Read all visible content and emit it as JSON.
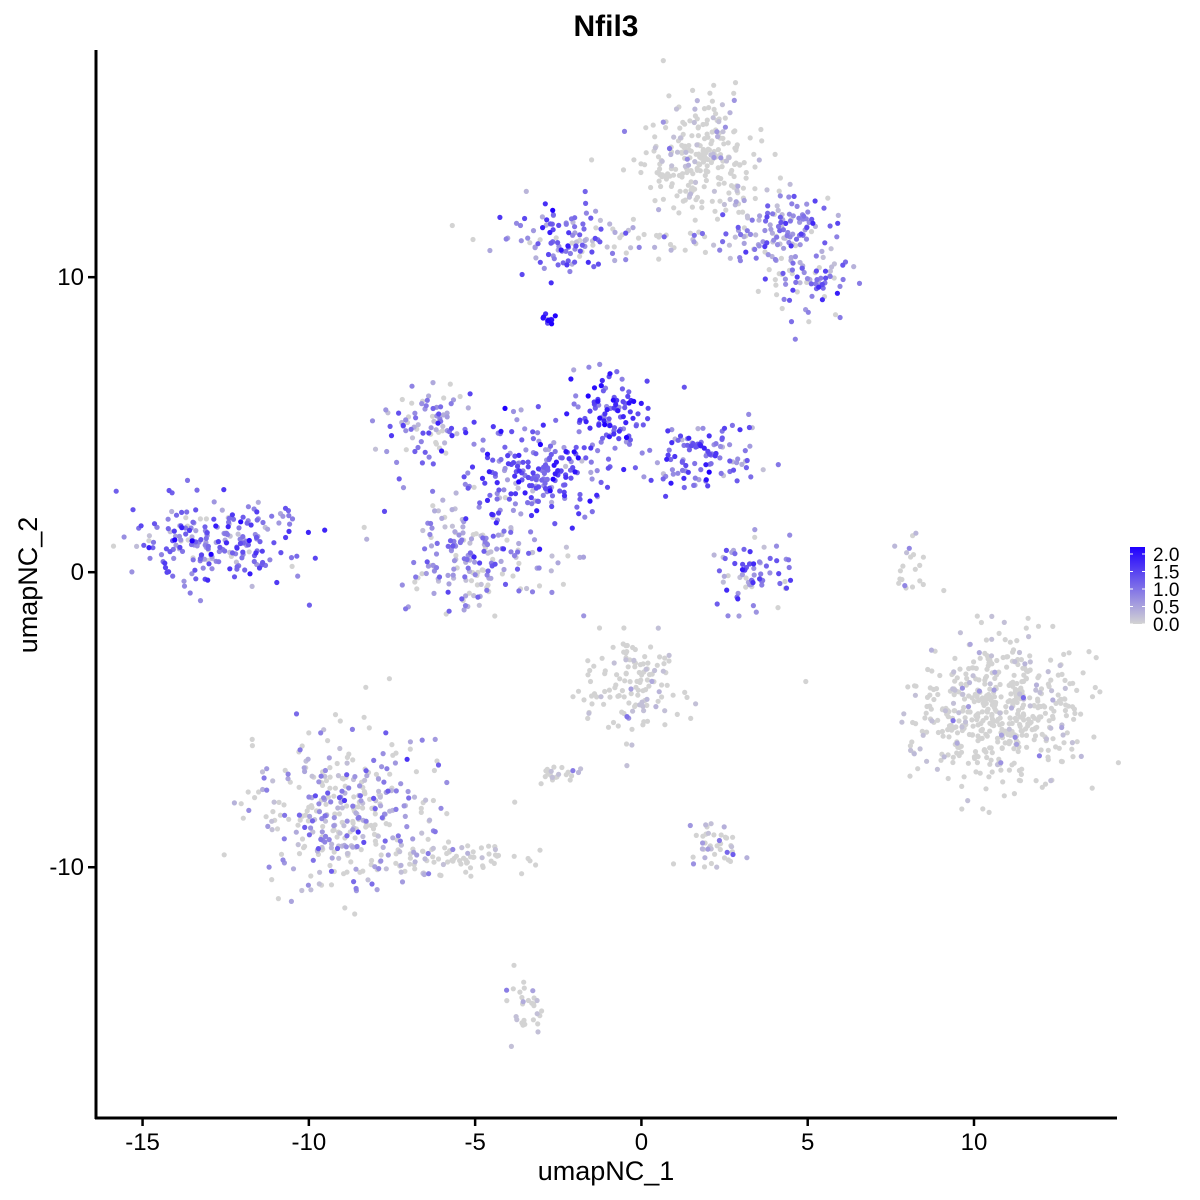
{
  "chart_data": {
    "type": "scatter",
    "title": "Nfil3",
    "xlabel": "umapNC_1",
    "ylabel": "umapNC_2",
    "xlim": [
      -16.4,
      14.3
    ],
    "ylim": [
      -18.5,
      17.7
    ],
    "xticks": [
      -15,
      -10,
      -5,
      0,
      5,
      10
    ],
    "xtick_labels": [
      "-15",
      "-10",
      "-5",
      "0",
      "5",
      "10"
    ],
    "yticks": [
      -10,
      0,
      10
    ],
    "ytick_labels": [
      "-10",
      "0",
      "10"
    ],
    "color_scale": {
      "low": "#d3d3d3",
      "high": "#1f00ff",
      "min": 0.0,
      "max": 2.2,
      "ticks": [
        0.0,
        0.5,
        1.0,
        1.5,
        2.0
      ],
      "tick_labels": [
        "0.0",
        "0.5",
        "1.0",
        "1.5",
        "2.0"
      ]
    },
    "legend_position": "right",
    "grid": false,
    "clusters": [
      {
        "id": "top-right-arm",
        "cx": 1.8,
        "cy": 14.0,
        "sx": 0.9,
        "sy": 1.0,
        "n": 260,
        "mean_expr": 0.15
      },
      {
        "id": "top-right-lobe",
        "cx": 4.2,
        "cy": 11.6,
        "sx": 0.9,
        "sy": 0.6,
        "n": 120,
        "mean_expr": 0.9
      },
      {
        "id": "top-right-lower",
        "cx": 5.0,
        "cy": 9.7,
        "sx": 0.7,
        "sy": 0.6,
        "n": 70,
        "mean_expr": 0.8
      },
      {
        "id": "top-bridge",
        "cx": -0.3,
        "cy": 11.2,
        "sx": 2.2,
        "sy": 0.3,
        "n": 70,
        "mean_expr": 0.4
      },
      {
        "id": "top-left-lobe",
        "cx": -2.4,
        "cy": 11.4,
        "sx": 0.7,
        "sy": 0.6,
        "n": 80,
        "mean_expr": 1.1
      },
      {
        "id": "small-blue-speck",
        "cx": -2.8,
        "cy": 8.6,
        "sx": 0.1,
        "sy": 0.1,
        "n": 12,
        "mean_expr": 2.0
      },
      {
        "id": "central-hub",
        "cx": -3.2,
        "cy": 3.3,
        "sx": 1.2,
        "sy": 0.9,
        "n": 220,
        "mean_expr": 1.2
      },
      {
        "id": "central-upper-left-arm",
        "cx": -6.5,
        "cy": 5.2,
        "sx": 0.7,
        "sy": 0.6,
        "n": 80,
        "mean_expr": 0.8
      },
      {
        "id": "central-upper-right-arm",
        "cx": -1.0,
        "cy": 5.5,
        "sx": 0.5,
        "sy": 0.7,
        "n": 90,
        "mean_expr": 1.4
      },
      {
        "id": "central-right-arm",
        "cx": 1.8,
        "cy": 4.0,
        "sx": 0.9,
        "sy": 0.6,
        "n": 110,
        "mean_expr": 1.1
      },
      {
        "id": "central-lower-lobe",
        "cx": -5.0,
        "cy": 0.6,
        "sx": 1.2,
        "sy": 1.0,
        "n": 200,
        "mean_expr": 0.7
      },
      {
        "id": "left-island",
        "cx": -12.8,
        "cy": 1.0,
        "sx": 1.1,
        "sy": 0.7,
        "n": 230,
        "mean_expr": 1.0
      },
      {
        "id": "mid-small-cluster",
        "cx": 3.3,
        "cy": -0.2,
        "sx": 0.6,
        "sy": 0.6,
        "n": 70,
        "mean_expr": 0.9
      },
      {
        "id": "right-thin-arc",
        "cx": 8.1,
        "cy": 0.1,
        "sx": 0.2,
        "sy": 0.7,
        "n": 20,
        "mean_expr": 0.2
      },
      {
        "id": "right-large-blob",
        "cx": 10.7,
        "cy": -4.7,
        "sx": 1.2,
        "sy": 1.3,
        "n": 520,
        "mean_expr": 0.08
      },
      {
        "id": "lower-center-cluster",
        "cx": -0.2,
        "cy": -3.9,
        "sx": 0.7,
        "sy": 0.8,
        "n": 130,
        "mean_expr": 0.15
      },
      {
        "id": "lower-left-cluster",
        "cx": -8.8,
        "cy": -8.2,
        "sx": 1.4,
        "sy": 1.2,
        "n": 380,
        "mean_expr": 0.55
      },
      {
        "id": "lower-left-tail",
        "cx": -5.6,
        "cy": -9.8,
        "sx": 1.1,
        "sy": 0.3,
        "n": 70,
        "mean_expr": 0.2
      },
      {
        "id": "lower-mid-small",
        "cx": -2.6,
        "cy": -6.8,
        "sx": 0.4,
        "sy": 0.2,
        "n": 22,
        "mean_expr": 0.3
      },
      {
        "id": "lower-mid-right",
        "cx": 2.2,
        "cy": -9.2,
        "sx": 0.4,
        "sy": 0.4,
        "n": 45,
        "mean_expr": 0.3
      },
      {
        "id": "bottom-strand",
        "cx": -3.5,
        "cy": -14.8,
        "sx": 0.3,
        "sy": 0.6,
        "n": 30,
        "mean_expr": 0.2
      }
    ]
  }
}
